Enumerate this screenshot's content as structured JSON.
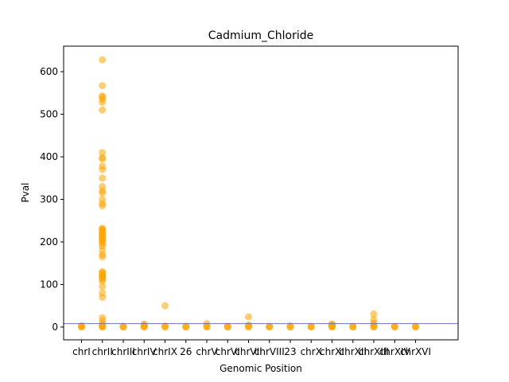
{
  "chart_data": {
    "type": "scatter",
    "title": "Cadmium_Chloride",
    "xlabel": "Genomic Position",
    "ylabel": "Pval",
    "categories": [
      "chrI",
      "chrII",
      "chrIII",
      "chrIV",
      "chrIX",
      "26",
      "chrV",
      "chrVI",
      "chrVII",
      "chrVIII",
      "23",
      "chrX",
      "chrXI",
      "chrXII",
      "chrXIII",
      "chrXIV",
      "chrXVI"
    ],
    "yticks": [
      0,
      100,
      200,
      300,
      400,
      500,
      600
    ],
    "ylim": [
      -30,
      660
    ],
    "threshold": 8,
    "colors": {
      "points": "#FFA500",
      "threshold": "#7070c0"
    },
    "series": [
      {
        "category": "chrI",
        "values": [
          0,
          1,
          2,
          3
        ]
      },
      {
        "category": "chrII",
        "values": [
          0,
          1,
          2,
          4,
          8,
          15,
          22,
          70,
          80,
          95,
          108,
          112,
          115,
          118,
          120,
          122,
          125,
          128,
          130,
          165,
          170,
          180,
          190,
          195,
          200,
          203,
          205,
          208,
          210,
          212,
          215,
          218,
          220,
          222,
          225,
          228,
          230,
          232,
          285,
          290,
          300,
          315,
          320,
          330,
          350,
          370,
          378,
          395,
          398,
          410,
          510,
          528,
          535,
          540,
          543,
          567,
          628
        ]
      },
      {
        "category": "chrIII",
        "values": [
          0,
          1,
          2
        ]
      },
      {
        "category": "chrIV",
        "values": [
          0,
          1,
          2,
          3,
          5,
          7
        ]
      },
      {
        "category": "chrIX",
        "values": [
          0,
          1,
          3,
          50
        ]
      },
      {
        "category": "26",
        "values": [
          0,
          1,
          2
        ]
      },
      {
        "category": "chrV",
        "values": [
          0,
          1,
          3,
          8
        ]
      },
      {
        "category": "chrVI",
        "values": [
          0,
          1,
          2
        ]
      },
      {
        "category": "chrVII",
        "values": [
          0,
          1,
          3,
          5,
          24
        ]
      },
      {
        "category": "chrVIII",
        "values": [
          0,
          1,
          2
        ]
      },
      {
        "category": "23",
        "values": [
          0,
          1,
          3
        ]
      },
      {
        "category": "chrX",
        "values": [
          0,
          1,
          2
        ]
      },
      {
        "category": "chrXI",
        "values": [
          0,
          1,
          2,
          4,
          6,
          7
        ]
      },
      {
        "category": "chrXII",
        "values": [
          0,
          1,
          2
        ]
      },
      {
        "category": "chrXIII",
        "values": [
          0,
          1,
          3,
          5,
          10,
          18,
          31
        ]
      },
      {
        "category": "chrXIV",
        "values": [
          0,
          1,
          2
        ]
      },
      {
        "category": "chrXVI",
        "values": [
          0,
          1,
          2
        ]
      }
    ]
  }
}
